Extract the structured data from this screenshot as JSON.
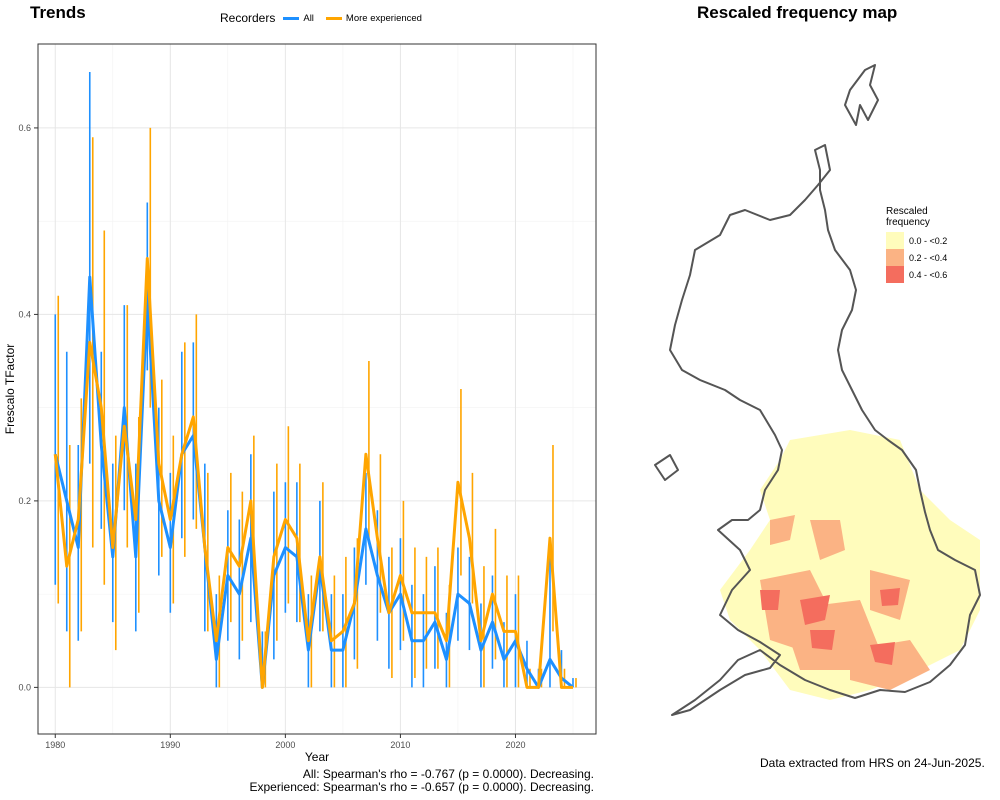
{
  "titles": {
    "trends": "Trends",
    "map": "Rescaled frequency map"
  },
  "legend": {
    "title": "Recorders",
    "items": [
      {
        "label": "All",
        "color": "#1e90ff"
      },
      {
        "label": "More experienced",
        "color": "#ffa500"
      }
    ]
  },
  "chart_data": {
    "type": "line",
    "title": "Trends",
    "xlabel": "Year",
    "ylabel": "Frescalo TFactor",
    "xlim": [
      1978.5,
      1927.0
    ],
    "x_ticks": [
      1980,
      1990,
      2000,
      2010,
      2020
    ],
    "ylim": [
      -0.05,
      0.69
    ],
    "y_ticks": [
      0.0,
      0.2,
      0.4,
      0.6
    ],
    "grid": true,
    "legend_position": "top",
    "years": [
      1980,
      1981,
      1982,
      1983,
      1984,
      1985,
      1986,
      1987,
      1988,
      1989,
      1990,
      1991,
      1992,
      1993,
      1994,
      1995,
      1996,
      1997,
      1998,
      1999,
      2000,
      2001,
      2002,
      2003,
      2004,
      2005,
      2006,
      2007,
      2008,
      2009,
      2010,
      2011,
      2012,
      2013,
      2014,
      2015,
      2016,
      2017,
      2018,
      2019,
      2020,
      2021,
      2022,
      2023,
      2024,
      2025
    ],
    "series": [
      {
        "name": "All",
        "color": "#1e90ff",
        "values": [
          0.25,
          0.2,
          0.15,
          0.44,
          0.26,
          0.14,
          0.3,
          0.14,
          0.42,
          0.2,
          0.15,
          0.25,
          0.27,
          0.15,
          0.03,
          0.12,
          0.1,
          0.16,
          0.0,
          0.12,
          0.15,
          0.14,
          0.04,
          0.13,
          0.04,
          0.04,
          0.09,
          0.17,
          0.12,
          0.08,
          0.1,
          0.05,
          0.05,
          0.07,
          0.03,
          0.1,
          0.09,
          0.04,
          0.07,
          0.03,
          0.05,
          0.02,
          0.0,
          0.03,
          0.01,
          0.0
        ],
        "upper": [
          0.4,
          0.36,
          0.26,
          0.66,
          0.36,
          0.24,
          0.41,
          0.24,
          0.52,
          0.3,
          0.23,
          0.36,
          0.37,
          0.24,
          0.1,
          0.19,
          0.18,
          0.25,
          0.06,
          0.21,
          0.22,
          0.22,
          0.1,
          0.2,
          0.1,
          0.1,
          0.15,
          0.23,
          0.19,
          0.14,
          0.16,
          0.11,
          0.1,
          0.13,
          0.08,
          0.15,
          0.14,
          0.09,
          0.12,
          0.07,
          0.1,
          0.05,
          0.02,
          0.14,
          0.04,
          0.01
        ],
        "lower": [
          0.11,
          0.06,
          0.05,
          0.24,
          0.17,
          0.07,
          0.19,
          0.06,
          0.34,
          0.12,
          0.08,
          0.16,
          0.18,
          0.06,
          0.0,
          0.05,
          0.03,
          0.07,
          0.0,
          0.03,
          0.08,
          0.07,
          0.0,
          0.06,
          0.0,
          0.0,
          0.03,
          0.11,
          0.05,
          0.02,
          0.04,
          0.0,
          0.0,
          0.02,
          0.0,
          0.05,
          0.04,
          0.0,
          0.02,
          0.0,
          0.0,
          0.0,
          0.0,
          0.0,
          0.0,
          0.0
        ]
      },
      {
        "name": "More experienced",
        "color": "#ffa500",
        "values": [
          0.25,
          0.13,
          0.18,
          0.37,
          0.3,
          0.15,
          0.28,
          0.18,
          0.46,
          0.24,
          0.18,
          0.25,
          0.29,
          0.15,
          0.05,
          0.15,
          0.13,
          0.2,
          0.0,
          0.14,
          0.18,
          0.16,
          0.05,
          0.14,
          0.05,
          0.06,
          0.09,
          0.25,
          0.16,
          0.08,
          0.12,
          0.08,
          0.08,
          0.08,
          0.05,
          0.22,
          0.16,
          0.05,
          0.1,
          0.06,
          0.06,
          0.0,
          0.0,
          0.16,
          0.0,
          0.0
        ],
        "upper": [
          0.42,
          0.26,
          0.31,
          0.59,
          0.49,
          0.27,
          0.41,
          0.29,
          0.6,
          0.33,
          0.27,
          0.37,
          0.4,
          0.23,
          0.12,
          0.23,
          0.21,
          0.27,
          0.06,
          0.24,
          0.28,
          0.24,
          0.12,
          0.22,
          0.12,
          0.14,
          0.16,
          0.35,
          0.25,
          0.15,
          0.2,
          0.15,
          0.14,
          0.15,
          0.11,
          0.32,
          0.23,
          0.13,
          0.17,
          0.12,
          0.12,
          0.02,
          0.02,
          0.26,
          0.02,
          0.01
        ],
        "lower": [
          0.09,
          0.0,
          0.06,
          0.15,
          0.11,
          0.04,
          0.15,
          0.08,
          0.3,
          0.14,
          0.09,
          0.14,
          0.17,
          0.06,
          0.0,
          0.07,
          0.05,
          0.11,
          0.0,
          0.05,
          0.09,
          0.07,
          0.0,
          0.06,
          0.0,
          0.0,
          0.02,
          0.16,
          0.08,
          0.01,
          0.05,
          0.01,
          0.02,
          0.02,
          0.0,
          0.12,
          0.09,
          0.0,
          0.03,
          0.0,
          0.0,
          0.0,
          0.0,
          0.06,
          0.0,
          0.0
        ]
      }
    ]
  },
  "stats": {
    "all": "All: Spearman's rho = -0.767 (p = 0.0000). Decreasing.",
    "experienced": "Experienced: Spearman's rho = -0.657 (p = 0.0000). Decreasing."
  },
  "map_legend": {
    "title": "Rescaled frequency",
    "items": [
      {
        "label": "0.0 - <0.2",
        "color": "#fffcbc"
      },
      {
        "label": "0.2 - <0.4",
        "color": "#fbb384"
      },
      {
        "label": "0.4 - <0.6",
        "color": "#f46d5e"
      }
    ]
  },
  "footer_note": "Data extracted from HRS on 24-Jun-2025."
}
